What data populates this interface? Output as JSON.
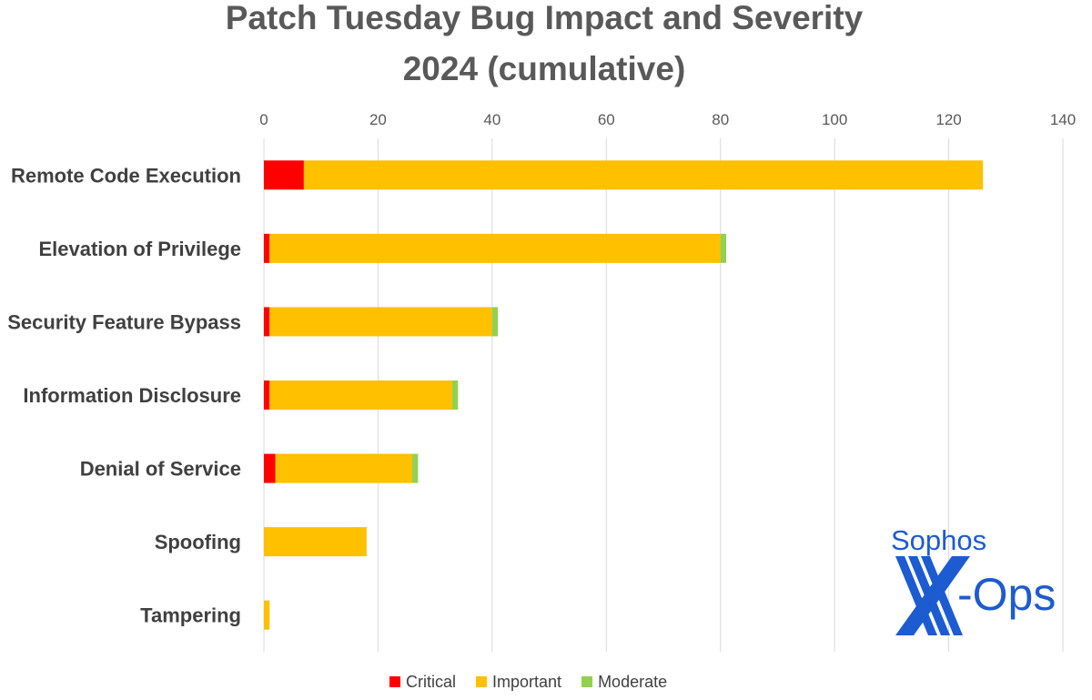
{
  "chart_data": {
    "type": "bar",
    "orientation": "horizontal",
    "stacked": true,
    "title_lines": [
      "Patch Tuesday Bug Impact and Severity",
      "2024 (cumulative)"
    ],
    "categories": [
      "Remote Code Execution",
      "Elevation of Privilege",
      "Security Feature Bypass",
      "Information Disclosure",
      "Denial of Service",
      "Spoofing",
      "Tampering"
    ],
    "series": [
      {
        "name": "Critical",
        "color": "#ff0000",
        "values": [
          7,
          1,
          1,
          1,
          2,
          0,
          0
        ]
      },
      {
        "name": "Important",
        "color": "#ffc000",
        "values": [
          119,
          79,
          39,
          32,
          24,
          18,
          1
        ]
      },
      {
        "name": "Moderate",
        "color": "#92d050",
        "values": [
          0,
          1,
          1,
          1,
          1,
          0,
          0
        ]
      }
    ],
    "xlim": [
      0,
      140
    ],
    "x_ticks": [
      0,
      20,
      40,
      60,
      80,
      100,
      120,
      140
    ],
    "x_axis_position": "top",
    "grid": true,
    "legend_position": "bottom"
  },
  "logo": {
    "top_text": "Sophos",
    "bottom_text": "-Ops",
    "mark": "X",
    "color": "#1d5bd0"
  }
}
